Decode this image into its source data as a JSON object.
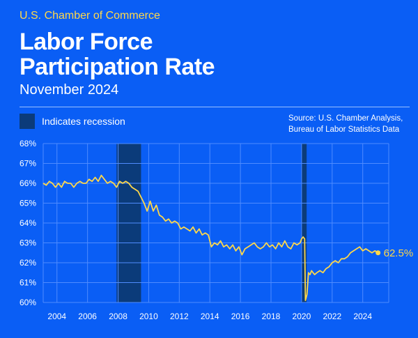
{
  "header": {
    "org": "U.S. Chamber of Commerce",
    "title_line1": "Labor Force",
    "title_line2": "Participation Rate",
    "subtitle": "November 2024"
  },
  "legend": {
    "label": "Indicates recession"
  },
  "source": {
    "line1": "Source: U.S. Chamber Analysis,",
    "line2": "Bureau of Labor Statistics Data"
  },
  "colors": {
    "background": "#0a5ef5",
    "line": "#ffd84a",
    "recession": "#0b3b7a",
    "grid": "#4f8cff"
  },
  "chart_data": {
    "type": "line",
    "title": "Labor Force Participation Rate",
    "subtitle": "November 2024",
    "xlabel": "",
    "ylabel": "",
    "xlim": [
      2003.1,
      2025.7
    ],
    "ylim": [
      60,
      68
    ],
    "x_ticks": [
      "2004",
      "2006",
      "2008",
      "2010",
      "2012",
      "2014",
      "2016",
      "2018",
      "2020",
      "2022",
      "2024"
    ],
    "y_ticks": [
      "60%",
      "61%",
      "62%",
      "63%",
      "64%",
      "65%",
      "66%",
      "67%",
      "68%"
    ],
    "grid": true,
    "recessions": [
      [
        2007.9,
        2009.5
      ],
      [
        2020.0,
        2020.33
      ]
    ],
    "end_label": "62.5%",
    "series": [
      {
        "values": [
          [
            2003.1,
            66.0
          ],
          [
            2003.3,
            65.9
          ],
          [
            2003.5,
            66.1
          ],
          [
            2003.7,
            66.0
          ],
          [
            2003.9,
            65.8
          ],
          [
            2004.1,
            66.0
          ],
          [
            2004.3,
            65.8
          ],
          [
            2004.5,
            66.1
          ],
          [
            2004.7,
            66.0
          ],
          [
            2004.9,
            66.0
          ],
          [
            2005.1,
            65.8
          ],
          [
            2005.3,
            66.0
          ],
          [
            2005.5,
            66.1
          ],
          [
            2005.7,
            66.0
          ],
          [
            2005.9,
            66.0
          ],
          [
            2006.1,
            66.2
          ],
          [
            2006.3,
            66.1
          ],
          [
            2006.5,
            66.3
          ],
          [
            2006.7,
            66.1
          ],
          [
            2006.9,
            66.4
          ],
          [
            2007.1,
            66.2
          ],
          [
            2007.3,
            66.0
          ],
          [
            2007.5,
            66.1
          ],
          [
            2007.7,
            66.0
          ],
          [
            2007.9,
            65.8
          ],
          [
            2008.1,
            66.1
          ],
          [
            2008.3,
            66.0
          ],
          [
            2008.5,
            66.1
          ],
          [
            2008.7,
            66.0
          ],
          [
            2008.9,
            65.8
          ],
          [
            2009.1,
            65.7
          ],
          [
            2009.3,
            65.6
          ],
          [
            2009.5,
            65.3
          ],
          [
            2009.7,
            65.0
          ],
          [
            2009.9,
            64.6
          ],
          [
            2010.1,
            65.1
          ],
          [
            2010.3,
            64.6
          ],
          [
            2010.5,
            64.9
          ],
          [
            2010.7,
            64.4
          ],
          [
            2010.9,
            64.3
          ],
          [
            2011.1,
            64.1
          ],
          [
            2011.3,
            64.2
          ],
          [
            2011.5,
            64.0
          ],
          [
            2011.7,
            64.1
          ],
          [
            2011.9,
            64.0
          ],
          [
            2012.1,
            63.7
          ],
          [
            2012.3,
            63.8
          ],
          [
            2012.5,
            63.7
          ],
          [
            2012.7,
            63.6
          ],
          [
            2012.9,
            63.8
          ],
          [
            2013.1,
            63.5
          ],
          [
            2013.3,
            63.7
          ],
          [
            2013.5,
            63.4
          ],
          [
            2013.7,
            63.5
          ],
          [
            2013.9,
            63.4
          ],
          [
            2014.1,
            62.8
          ],
          [
            2014.3,
            63.0
          ],
          [
            2014.5,
            62.9
          ],
          [
            2014.7,
            63.1
          ],
          [
            2014.9,
            62.8
          ],
          [
            2015.1,
            62.9
          ],
          [
            2015.3,
            62.7
          ],
          [
            2015.5,
            62.9
          ],
          [
            2015.7,
            62.6
          ],
          [
            2015.9,
            62.8
          ],
          [
            2016.1,
            62.4
          ],
          [
            2016.3,
            62.7
          ],
          [
            2016.5,
            62.8
          ],
          [
            2016.7,
            62.9
          ],
          [
            2016.9,
            63.0
          ],
          [
            2017.1,
            62.8
          ],
          [
            2017.3,
            62.7
          ],
          [
            2017.5,
            62.8
          ],
          [
            2017.7,
            63.0
          ],
          [
            2017.9,
            62.8
          ],
          [
            2018.1,
            62.9
          ],
          [
            2018.3,
            62.7
          ],
          [
            2018.5,
            63.0
          ],
          [
            2018.7,
            62.8
          ],
          [
            2018.9,
            63.1
          ],
          [
            2019.1,
            62.8
          ],
          [
            2019.3,
            62.7
          ],
          [
            2019.5,
            63.0
          ],
          [
            2019.7,
            62.9
          ],
          [
            2019.9,
            63.0
          ],
          [
            2020.0,
            63.2
          ],
          [
            2020.1,
            63.3
          ],
          [
            2020.2,
            63.2
          ],
          [
            2020.25,
            60.1
          ],
          [
            2020.35,
            60.4
          ],
          [
            2020.45,
            61.5
          ],
          [
            2020.55,
            61.4
          ],
          [
            2020.65,
            61.6
          ],
          [
            2020.75,
            61.5
          ],
          [
            2020.85,
            61.4
          ],
          [
            2021.0,
            61.5
          ],
          [
            2021.2,
            61.6
          ],
          [
            2021.4,
            61.5
          ],
          [
            2021.6,
            61.7
          ],
          [
            2021.8,
            61.8
          ],
          [
            2022.0,
            62.0
          ],
          [
            2022.2,
            62.1
          ],
          [
            2022.4,
            62.0
          ],
          [
            2022.6,
            62.2
          ],
          [
            2022.8,
            62.2
          ],
          [
            2023.0,
            62.3
          ],
          [
            2023.2,
            62.5
          ],
          [
            2023.4,
            62.6
          ],
          [
            2023.6,
            62.7
          ],
          [
            2023.8,
            62.8
          ],
          [
            2024.0,
            62.6
          ],
          [
            2024.2,
            62.7
          ],
          [
            2024.4,
            62.6
          ],
          [
            2024.6,
            62.5
          ],
          [
            2024.8,
            62.6
          ],
          [
            2025.0,
            62.5
          ]
        ]
      }
    ]
  }
}
